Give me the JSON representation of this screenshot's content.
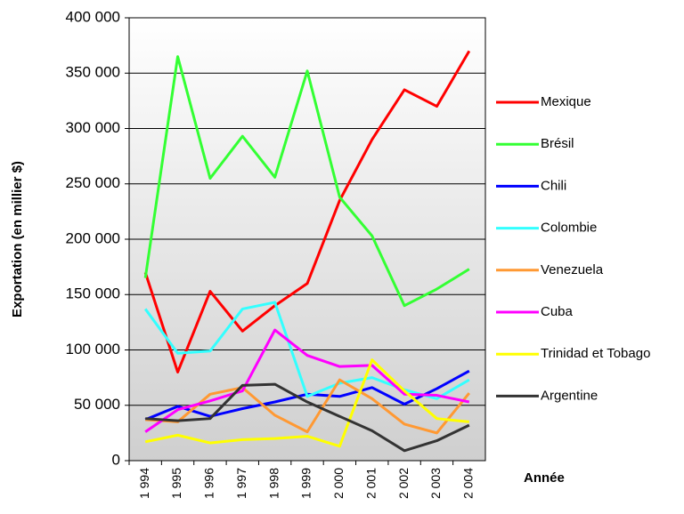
{
  "chart_data": {
    "type": "line",
    "y_label": "Exportation (en millier $)",
    "x_label": "Année",
    "categories": [
      "1 994",
      "1 995",
      "1 996",
      "1 997",
      "1 998",
      "1 999",
      "2 000",
      "2 001",
      "2 002",
      "2 003",
      "2 004"
    ],
    "ylim": [
      0,
      400000
    ],
    "yticks": [
      0,
      {
        "value": 50000,
        "label": "50 000"
      },
      {
        "value": 100000,
        "label": "100 000"
      },
      {
        "value": 150000,
        "label": "150 000"
      },
      {
        "value": 200000,
        "label": "200 000"
      },
      {
        "value": 250000,
        "label": "250 000"
      },
      {
        "value": 300000,
        "label": "300 000"
      },
      {
        "value": 350000,
        "label": "350 000"
      },
      {
        "value": 400000,
        "label": "400 000"
      }
    ],
    "grid": true,
    "legend": "right",
    "series": [
      {
        "name": "Mexique",
        "color": "#ff0000",
        "values": [
          170000,
          80000,
          153000,
          117000,
          140000,
          160000,
          235000,
          290000,
          335000,
          320000,
          370000
        ]
      },
      {
        "name": "Brésil",
        "color": "#33ff33",
        "values": [
          165000,
          365000,
          255000,
          293000,
          256000,
          352000,
          238000,
          203000,
          140000,
          155000,
          173000
        ]
      },
      {
        "name": "Chili",
        "color": "#0000ff",
        "values": [
          37000,
          49000,
          40000,
          47000,
          53000,
          60000,
          58000,
          66000,
          51000,
          65000,
          81000
        ]
      },
      {
        "name": "Colombie",
        "color": "#33ffff",
        "values": [
          137000,
          97000,
          99000,
          137000,
          143000,
          58000,
          70000,
          75000,
          64000,
          56000,
          73000
        ]
      },
      {
        "name": "Venezuela",
        "color": "#ff9933",
        "values": [
          37000,
          35000,
          60000,
          66000,
          41000,
          26000,
          73000,
          56000,
          33000,
          25000,
          61000
        ]
      },
      {
        "name": "Cuba",
        "color": "#ff00ff",
        "values": [
          26000,
          46000,
          54000,
          63000,
          118000,
          95000,
          85000,
          86000,
          60000,
          59000,
          53000
        ]
      },
      {
        "name": "Trinidad et Tobago",
        "color": "#ffff00",
        "values": [
          17000,
          23000,
          16000,
          19000,
          20000,
          22000,
          13000,
          91000,
          63000,
          38000,
          35000
        ]
      },
      {
        "name": "Argentine",
        "color": "#333333",
        "values": [
          38000,
          36000,
          38000,
          68000,
          69000,
          53000,
          40000,
          27000,
          9000,
          18000,
          32000
        ]
      }
    ]
  }
}
